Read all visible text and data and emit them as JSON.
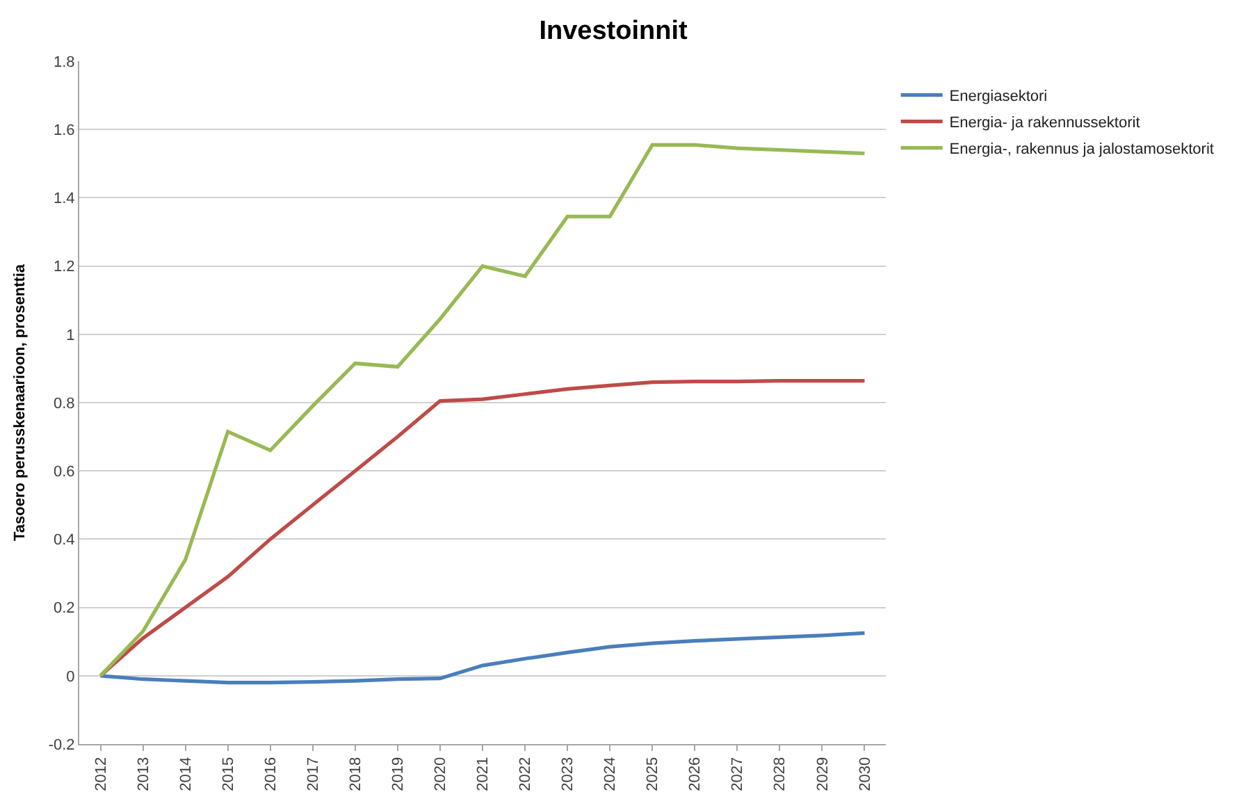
{
  "chart_data": {
    "type": "line",
    "title": "Investoinnit",
    "ylabel": "Tasoero perusskenaarioon, prosenttia",
    "categories": [
      "2012",
      "2013",
      "2014",
      "2015",
      "2016",
      "2017",
      "2018",
      "2019",
      "2020",
      "2021",
      "2022",
      "2023",
      "2024",
      "2025",
      "2026",
      "2027",
      "2028",
      "2029",
      "2030"
    ],
    "series": [
      {
        "name": "Energiasektori",
        "color": "#4a7ebb",
        "values": [
          0,
          -0.01,
          -0.015,
          -0.02,
          -0.02,
          -0.018,
          -0.015,
          -0.01,
          -0.008,
          0.03,
          0.05,
          0.068,
          0.085,
          0.095,
          0.102,
          0.108,
          0.113,
          0.118,
          0.125
        ]
      },
      {
        "name": "Energia- ja rakennussektorit",
        "color": "#be4b48",
        "values": [
          0,
          0.11,
          0.2,
          0.29,
          0.4,
          0.5,
          0.6,
          0.7,
          0.805,
          0.81,
          0.825,
          0.84,
          0.85,
          0.86,
          0.862,
          0.862,
          0.864,
          0.864,
          0.864
        ]
      },
      {
        "name": "Energia-, rakennus ja jalostamosektorit",
        "color": "#98b954",
        "values": [
          0,
          0.13,
          0.34,
          0.715,
          0.66,
          0.79,
          0.915,
          0.905,
          1.045,
          1.2,
          1.17,
          1.345,
          1.345,
          1.555,
          1.555,
          1.545,
          1.54,
          1.535,
          1.53
        ]
      }
    ],
    "ylim": [
      -0.2,
      1.8
    ],
    "yticks": [
      -0.2,
      0,
      0.2,
      0.4,
      0.6,
      0.8,
      1,
      1.2,
      1.4,
      1.6,
      1.8
    ],
    "grid": "y",
    "legend": "top right"
  }
}
